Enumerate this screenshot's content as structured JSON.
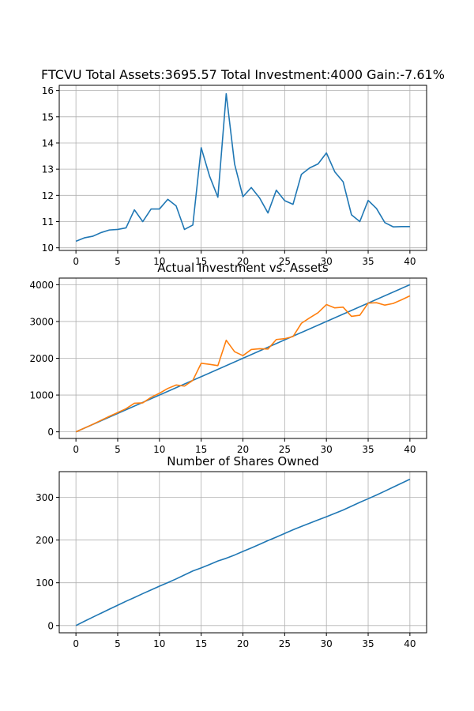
{
  "chart_data": [
    {
      "type": "line",
      "title": "FTCVU Total Assets:3695.57  Total Investment:4000  Gain:-7.61%",
      "xlabel": "",
      "ylabel": "",
      "xlim": [
        -2,
        42
      ],
      "ylim": [
        9.9,
        16.2
      ],
      "x_ticks": [
        0,
        5,
        10,
        15,
        20,
        25,
        30,
        35,
        40
      ],
      "y_ticks": [
        10,
        11,
        12,
        13,
        14,
        15,
        16
      ],
      "grid": true,
      "series": [
        {
          "color": "#1f77b4",
          "x": [
            0,
            1,
            2,
            3,
            4,
            5,
            6,
            7,
            8,
            9,
            10,
            11,
            12,
            13,
            14,
            15,
            16,
            17,
            18,
            19,
            20,
            21,
            22,
            23,
            24,
            25,
            26,
            27,
            28,
            29,
            30,
            31,
            32,
            33,
            34,
            35,
            36,
            37,
            38,
            39,
            40
          ],
          "values": [
            10.25,
            10.38,
            10.44,
            10.58,
            10.68,
            10.7,
            10.76,
            11.45,
            11.0,
            11.48,
            11.48,
            11.85,
            11.6,
            10.7,
            10.87,
            13.82,
            12.74,
            11.93,
            15.88,
            13.2,
            11.95,
            12.3,
            11.9,
            11.33,
            12.2,
            11.8,
            11.66,
            12.8,
            13.05,
            13.2,
            13.62,
            12.9,
            12.52,
            11.26,
            11.0,
            11.81,
            11.5,
            10.96,
            10.8,
            10.81,
            10.81
          ]
        }
      ]
    },
    {
      "type": "line",
      "title": "Actual Investment vs. Assets",
      "xlabel": "",
      "ylabel": "",
      "xlim": [
        -2,
        42
      ],
      "ylim": [
        -180,
        4180
      ],
      "x_ticks": [
        0,
        5,
        10,
        15,
        20,
        25,
        30,
        35,
        40
      ],
      "y_ticks": [
        0,
        1000,
        2000,
        3000,
        4000
      ],
      "grid": true,
      "series": [
        {
          "color": "#1f77b4",
          "x": [
            0,
            40
          ],
          "values": [
            0,
            4000
          ]
        },
        {
          "color": "#ff7f0e",
          "x": [
            0,
            1,
            2,
            3,
            4,
            5,
            6,
            7,
            8,
            9,
            10,
            11,
            12,
            13,
            14,
            15,
            16,
            17,
            18,
            19,
            20,
            21,
            22,
            23,
            24,
            25,
            26,
            27,
            28,
            29,
            30,
            31,
            32,
            33,
            34,
            35,
            36,
            37,
            38,
            39,
            40
          ],
          "values": [
            0,
            101,
            203,
            313,
            422,
            524,
            629,
            777,
            787,
            938,
            1049,
            1180,
            1273,
            1243,
            1400,
            1864,
            1835,
            1800,
            2490,
            2178,
            2071,
            2238,
            2259,
            2251,
            2510,
            2532,
            2590,
            2950,
            3100,
            3240,
            3460,
            3370,
            3390,
            3140,
            3170,
            3500,
            3510,
            3445,
            3490,
            3590,
            3696
          ]
        }
      ]
    },
    {
      "type": "line",
      "title": "Number of Shares Owned",
      "xlabel": "",
      "ylabel": "",
      "xlim": [
        -2,
        42
      ],
      "ylim": [
        -17,
        360
      ],
      "x_ticks": [
        0,
        5,
        10,
        15,
        20,
        25,
        30,
        35,
        40
      ],
      "y_ticks": [
        0,
        100,
        200,
        300
      ],
      "grid": true,
      "series": [
        {
          "color": "#1f77b4",
          "x": [
            0,
            1,
            2,
            3,
            4,
            5,
            6,
            7,
            8,
            9,
            10,
            11,
            12,
            13,
            14,
            15,
            16,
            17,
            18,
            19,
            20,
            21,
            22,
            23,
            24,
            25,
            26,
            27,
            28,
            29,
            30,
            31,
            32,
            33,
            34,
            35,
            36,
            37,
            38,
            39,
            40
          ],
          "values": [
            0,
            9.8,
            19.4,
            28.8,
            38.2,
            47.5,
            56.8,
            65.5,
            74.6,
            83.3,
            92.0,
            100.4,
            109.0,
            118.4,
            127.6,
            134.8,
            142.6,
            151.0,
            157.3,
            164.9,
            173.3,
            181.5,
            189.9,
            198.7,
            206.9,
            215.4,
            224.0,
            231.8,
            239.5,
            247.1,
            254.4,
            262.2,
            270.2,
            279.1,
            288.2,
            296.6,
            305.3,
            314.4,
            323.7,
            332.9,
            342.2
          ]
        }
      ]
    }
  ]
}
